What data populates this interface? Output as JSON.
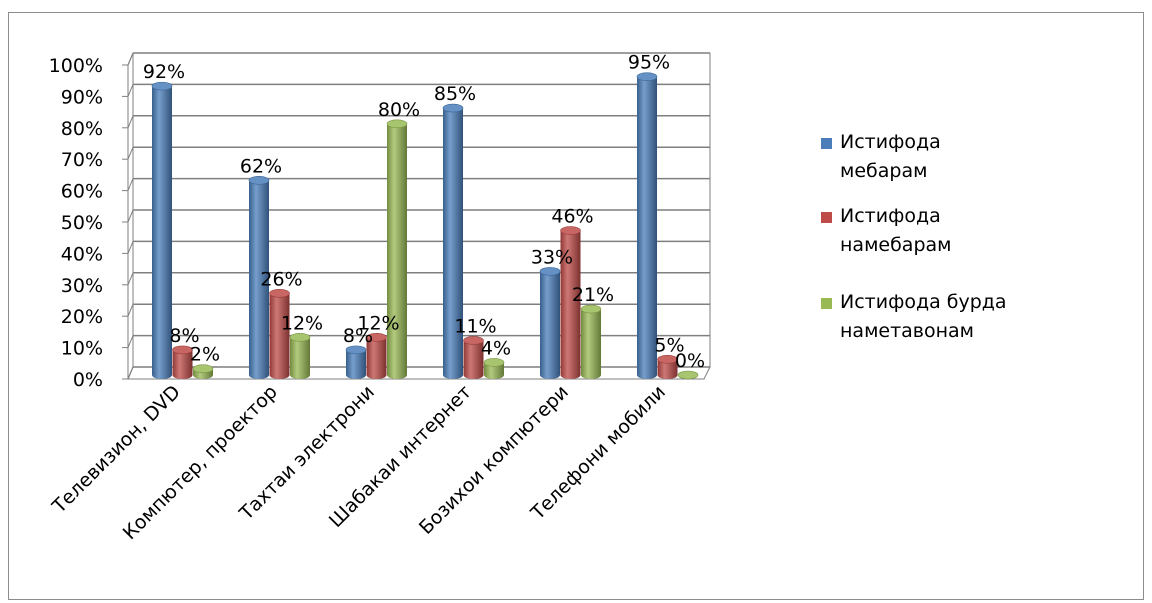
{
  "chart_data": {
    "type": "bar",
    "title": "",
    "xlabel": "",
    "ylabel": "",
    "ylim": [
      0,
      100
    ],
    "y_ticks": [
      "0%",
      "10%",
      "20%",
      "30%",
      "40%",
      "50%",
      "60%",
      "70%",
      "80%",
      "90%",
      "100%"
    ],
    "categories": [
      "Телевизион, DVD",
      "Компютер, проектор",
      "Тахтаи электрони",
      "Шабакаи интернет",
      "Бозихои компютери",
      "Телефони мобили"
    ],
    "series": [
      {
        "name": "Истифода мебарам",
        "legend_lines": [
          "Истифода",
          "мебарам"
        ],
        "color": "#4a7ebb",
        "values": [
          92,
          62,
          8,
          85,
          33,
          95
        ],
        "labels": [
          "92%",
          "62%",
          "8%",
          "85%",
          "33%",
          "95%"
        ]
      },
      {
        "name": "Истифода намебарам",
        "legend_lines": [
          "Истифода",
          "намебарам"
        ],
        "color": "#be4b48",
        "values": [
          8,
          26,
          12,
          11,
          46,
          5
        ],
        "labels": [
          "8%",
          "26%",
          "12%",
          "11%",
          "46%",
          "5%"
        ]
      },
      {
        "name": "Истифода бурда наметавонам",
        "legend_lines": [
          "Истифода бурда",
          "наметавонам"
        ],
        "color": "#98b954",
        "values": [
          2,
          12,
          80,
          4,
          21,
          0
        ],
        "labels": [
          "2%",
          "12%",
          "80%",
          "4%",
          "21%",
          "0%"
        ]
      }
    ],
    "grid": true,
    "legend": "right",
    "style": "3d-cylinder"
  }
}
